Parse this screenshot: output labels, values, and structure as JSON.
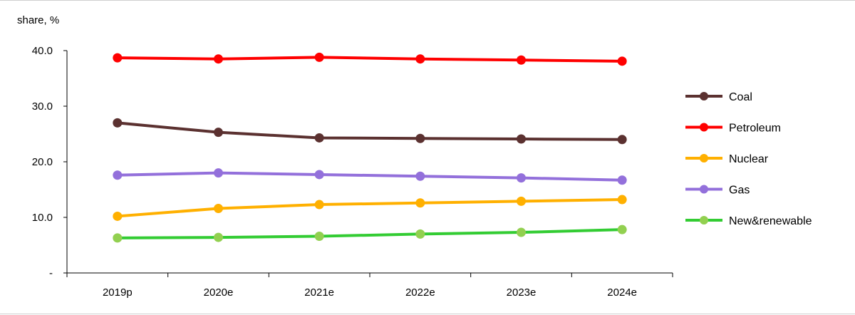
{
  "chart_data": {
    "type": "line",
    "ylabel": "share, %",
    "categories": [
      "2019p",
      "2020e",
      "2021e",
      "2022e",
      "2023e",
      "2024e"
    ],
    "y_ticks": [
      "-",
      "10.0",
      "20.0",
      "30.0",
      "40.0"
    ],
    "ylim": [
      0,
      40
    ],
    "grid": false,
    "legend_position": "right",
    "series": [
      {
        "name": "Coal",
        "color": "#5b3130",
        "values": [
          27.0,
          25.3,
          24.3,
          24.2,
          24.1,
          24.0
        ]
      },
      {
        "name": "Petroleum",
        "color": "#ff0000",
        "values": [
          38.7,
          38.5,
          38.8,
          38.5,
          38.3,
          38.1
        ]
      },
      {
        "name": "Nuclear",
        "color": "#ffb000",
        "values": [
          10.2,
          11.6,
          12.3,
          12.6,
          12.9,
          13.2
        ]
      },
      {
        "name": "Gas",
        "color": "#9370db",
        "values": [
          17.6,
          18.0,
          17.7,
          17.4,
          17.1,
          16.7
        ]
      },
      {
        "name": "New&renewable",
        "color": "#33cc33",
        "marker_color": "#92d050",
        "values": [
          6.3,
          6.4,
          6.6,
          7.0,
          7.3,
          7.8
        ]
      }
    ]
  }
}
